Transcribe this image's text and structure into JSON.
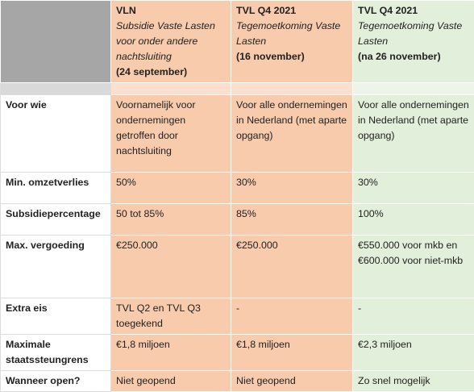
{
  "header": [
    {
      "title": "VLN",
      "subtitle": "Subsidie Vaste Lasten voor onder andere nachtsluiting",
      "date": "(24 september)"
    },
    {
      "title": "TVL Q4 2021",
      "subtitle": "Tegemoetkoming Vaste Lasten",
      "date": "(16 november)"
    },
    {
      "title": "TVL Q4 2021",
      "subtitle": "Tegemoetkoming Vaste Lasten",
      "date": "(na 26 november)"
    }
  ],
  "rows": [
    {
      "label": "Voor wie",
      "cells": [
        "Voornamelijk voor ondernemingen getroffen door nachtsluiting",
        "Voor alle ondernemingen in Nederland (met aparte opgang)",
        "Voor alle ondernemingen in Nederland (met aparte opgang)"
      ]
    },
    {
      "label": "Min. omzetverlies",
      "cells": [
        "50%",
        "30%",
        "30%"
      ]
    },
    {
      "label": "Subsidiepercentage",
      "cells": [
        "50 tot 85%",
        "85%",
        "100%"
      ]
    },
    {
      "label": "Max. vergoeding",
      "cells": [
        "€250.000",
        "€250.000",
        "€550.000 voor mkb en €600.000 voor niet-mkb"
      ]
    },
    {
      "label": "Extra eis",
      "cells": [
        "TVL Q2 en TVL Q3 toegekend",
        "-",
        "-"
      ]
    },
    {
      "label": "Maximale staatssteungrens",
      "cells": [
        "€1,8 miljoen",
        "€1,8 miljoen",
        "€2,3 miljoen"
      ]
    },
    {
      "label": "Wanneer open?",
      "cells": [
        "Niet geopend",
        "Niet geopend",
        "Zo snel mogelijk"
      ]
    }
  ]
}
